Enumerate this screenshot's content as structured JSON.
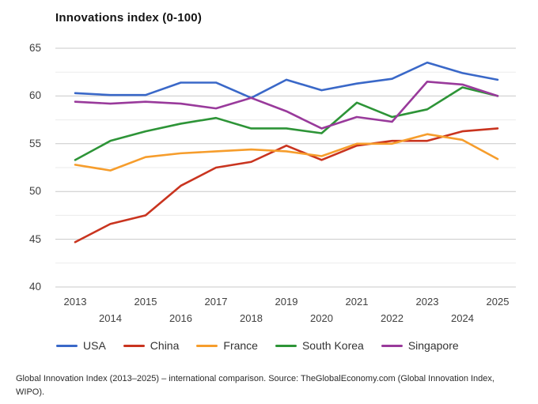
{
  "title": "Innovations index (0-100)",
  "caption": {
    "line1": "Global Innovation Index (2013–2025) – international comparison. Source: TheGlobalEconomy.com (Global Innovation Index,",
    "line2": "WIPO)."
  },
  "colors": {
    "grid_major": "#c9c9c9",
    "grid_minor": "#ebebeb",
    "axis_text": "#3f3f3f",
    "title_text": "#141414"
  },
  "chart_data": {
    "type": "line",
    "title": "Innovations index (0-100)",
    "x": [
      2013,
      2014,
      2015,
      2016,
      2017,
      2018,
      2019,
      2020,
      2021,
      2022,
      2023,
      2024,
      2025
    ],
    "ylim": [
      40,
      65
    ],
    "yticks": [
      40,
      45,
      50,
      55,
      60,
      65
    ],
    "grid_step": 2.5,
    "grid": true,
    "legend_position": "bottom",
    "series": [
      {
        "name": "USA",
        "color": "#3a68c8",
        "values": [
          60.3,
          60.1,
          60.1,
          61.4,
          61.4,
          59.8,
          61.7,
          60.6,
          61.3,
          61.8,
          63.5,
          62.4,
          61.7
        ]
      },
      {
        "name": "China",
        "color": "#c9341f",
        "values": [
          44.7,
          46.6,
          47.5,
          50.6,
          52.5,
          53.1,
          54.8,
          53.3,
          54.8,
          55.3,
          55.3,
          56.3,
          56.6
        ]
      },
      {
        "name": "France",
        "color": "#f69d2c",
        "values": [
          52.8,
          52.2,
          53.6,
          54.0,
          54.2,
          54.4,
          54.2,
          53.7,
          55.0,
          55.0,
          56.0,
          55.4,
          53.4
        ]
      },
      {
        "name": "South Korea",
        "color": "#2d9437",
        "values": [
          53.3,
          55.3,
          56.3,
          57.1,
          57.7,
          56.6,
          56.6,
          56.1,
          59.3,
          57.8,
          58.6,
          60.9,
          60.0
        ]
      },
      {
        "name": "Singapore",
        "color": "#993a9b",
        "values": [
          59.4,
          59.2,
          59.4,
          59.2,
          58.7,
          59.8,
          58.4,
          56.6,
          57.8,
          57.3,
          61.5,
          61.2,
          60.0
        ]
      }
    ]
  }
}
